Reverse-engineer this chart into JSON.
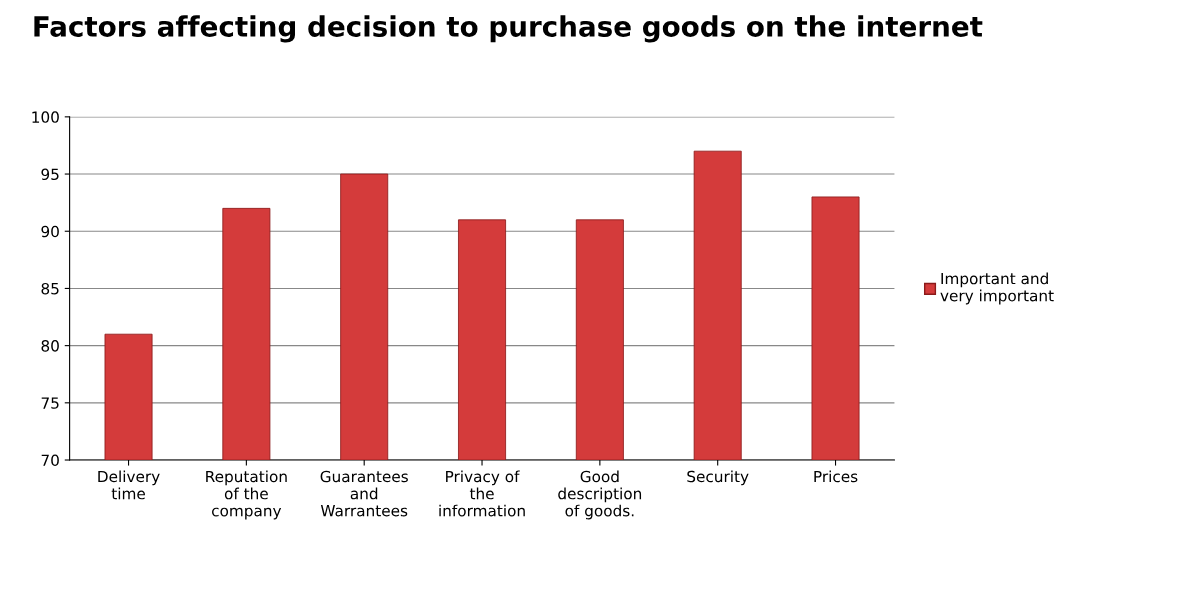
{
  "chart_data": {
    "type": "bar",
    "title": "Factors affecting decision to purchase goods on the internet",
    "categories": [
      "Delivery\ntime",
      "Reputation\nof the\ncompany",
      "Guarantees\nand\nWarrantees",
      "Privacy of\nthe\ninformation",
      "Good\ndescription\nof goods.",
      "Security",
      "Prices"
    ],
    "series": [
      {
        "name": "Important and\nvery important",
        "color": "#d43b3b",
        "values": [
          81,
          92,
          95,
          91,
          91,
          97,
          93
        ]
      }
    ],
    "ylim": [
      70,
      100
    ],
    "yticks": [
      70,
      75,
      80,
      85,
      90,
      95,
      100
    ],
    "grid": "y",
    "legend": "right"
  }
}
